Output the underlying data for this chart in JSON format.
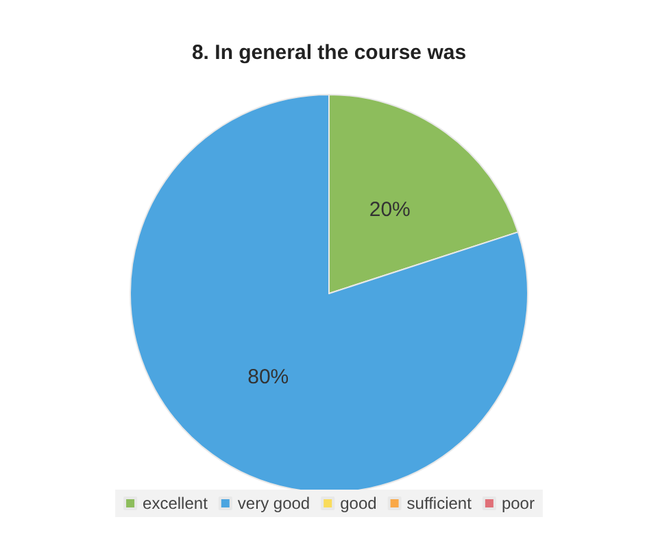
{
  "chart_data": {
    "type": "pie",
    "title": "8. In general the course was",
    "categories": [
      "excellent",
      "very good",
      "good",
      "sufficient",
      "poor"
    ],
    "values": [
      20,
      80,
      0,
      0,
      0
    ],
    "colors": [
      "#8dbd5c",
      "#4ca5e0",
      "#f9dc5c",
      "#f9a848",
      "#e07078"
    ],
    "value_labels": [
      "20%",
      "80%",
      null,
      null,
      null
    ],
    "legend": "bottom"
  }
}
